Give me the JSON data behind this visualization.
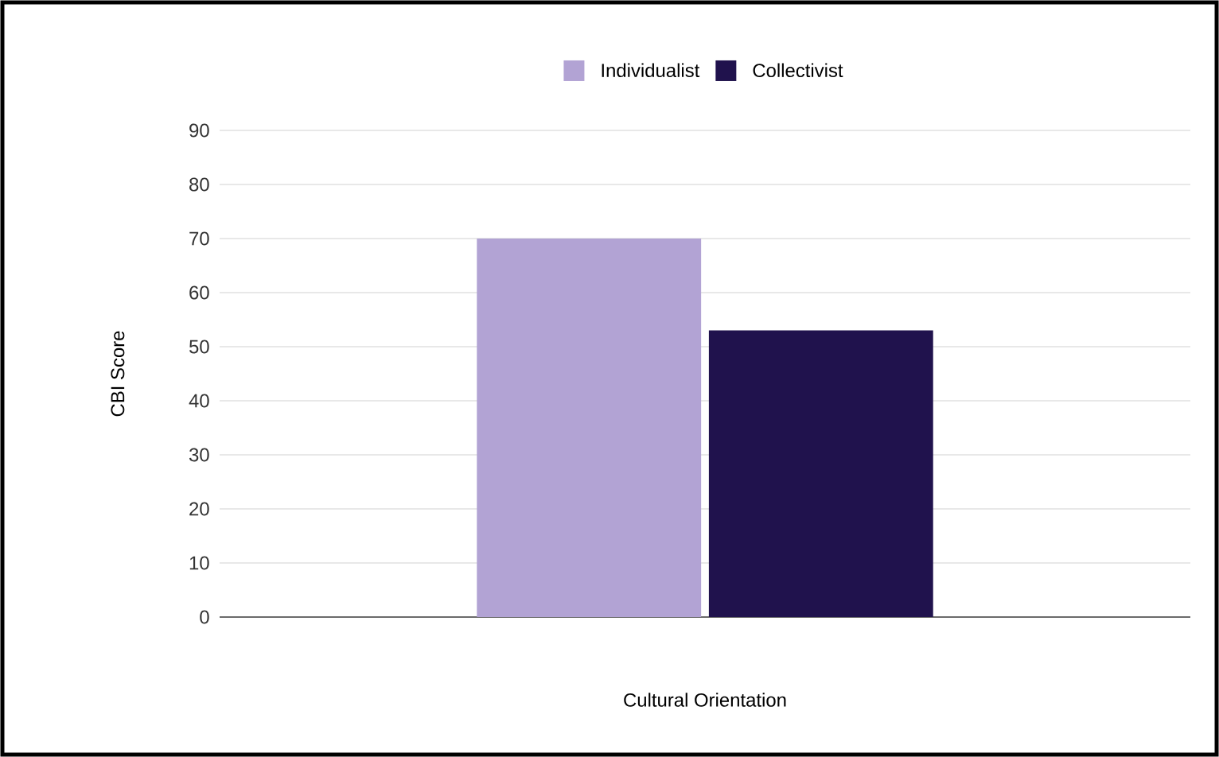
{
  "chart_data": {
    "type": "bar",
    "xlabel": "Cultural Orientation",
    "ylabel": "CBI Score",
    "categories": [
      null
    ],
    "series": [
      {
        "name": "Individualist",
        "color": "#b2a3d4",
        "values": [
          70
        ]
      },
      {
        "name": "Collectivist",
        "color": "#20124d",
        "values": [
          53
        ]
      }
    ],
    "ylim": [
      0,
      90
    ],
    "yticks": [
      0,
      10,
      20,
      30,
      40,
      50,
      60,
      70,
      80,
      90
    ],
    "grid": "y",
    "legend": "top"
  }
}
